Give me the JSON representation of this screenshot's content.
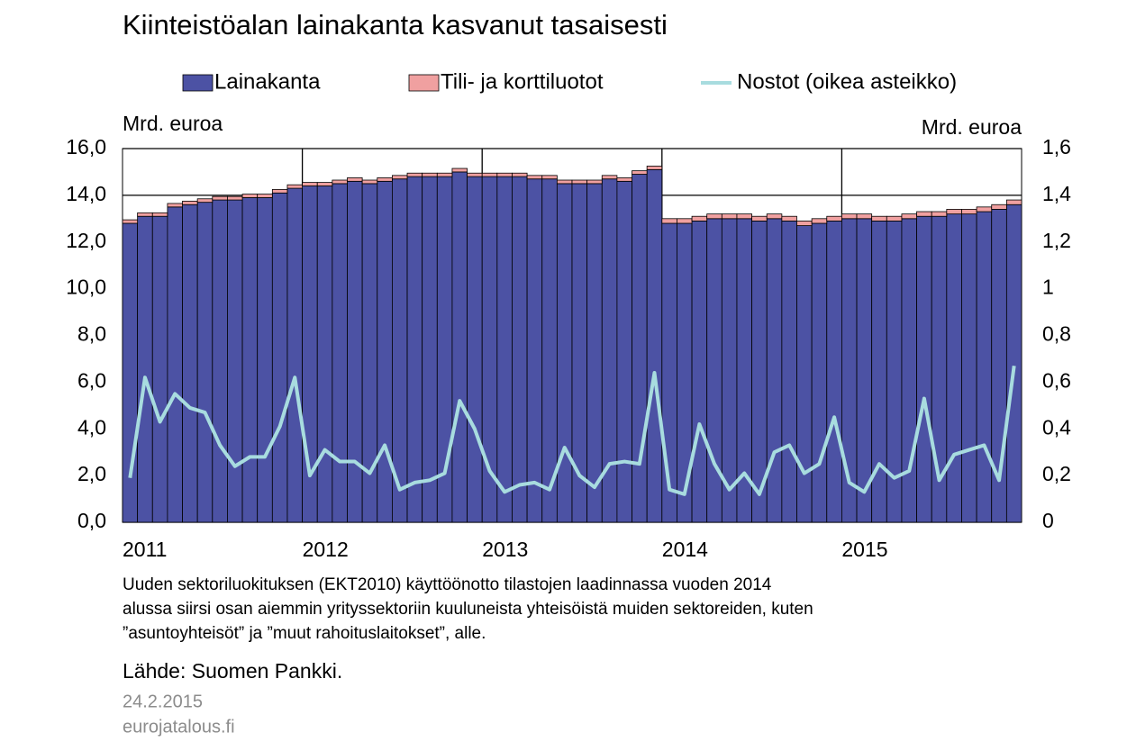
{
  "chart_data": {
    "type": "bar",
    "stacked": true,
    "title": "Kiinteistöalan lainakanta kasvanut tasaisesti",
    "y_label": "Mrd. euroa",
    "y2_label": "Mrd. euroa",
    "categories": [
      "2011",
      null,
      null,
      null,
      null,
      null,
      null,
      null,
      null,
      null,
      null,
      null,
      "2012",
      null,
      null,
      null,
      null,
      null,
      null,
      null,
      null,
      null,
      null,
      null,
      "2013",
      null,
      null,
      null,
      null,
      null,
      null,
      null,
      null,
      null,
      null,
      null,
      "2014",
      null,
      null,
      null,
      null,
      null,
      null,
      null,
      null,
      null,
      null,
      null,
      "2015",
      null,
      null,
      null,
      null,
      null,
      null,
      null,
      null,
      null,
      null,
      null
    ],
    "series": [
      {
        "name": "Lainakanta",
        "type": "bar",
        "color": "#4c52a4",
        "values": [
          12.8,
          13.1,
          13.1,
          13.5,
          13.6,
          13.7,
          13.8,
          13.8,
          13.9,
          13.9,
          14.1,
          14.3,
          14.4,
          14.4,
          14.5,
          14.6,
          14.5,
          14.6,
          14.7,
          14.8,
          14.8,
          14.8,
          15.0,
          14.8,
          14.8,
          14.8,
          14.8,
          14.7,
          14.7,
          14.5,
          14.5,
          14.5,
          14.7,
          14.6,
          14.9,
          15.1,
          12.8,
          12.8,
          12.9,
          13.0,
          13.0,
          13.0,
          12.9,
          13.0,
          12.9,
          12.7,
          12.8,
          12.9,
          13.0,
          13.0,
          12.9,
          12.9,
          13.0,
          13.1,
          13.1,
          13.2,
          13.2,
          13.3,
          13.4,
          13.6
        ]
      },
      {
        "name": "Tili- ja korttiluotot",
        "type": "bar",
        "color": "#f0a0a0",
        "values": [
          0.15,
          0.15,
          0.15,
          0.15,
          0.15,
          0.15,
          0.15,
          0.15,
          0.15,
          0.15,
          0.15,
          0.15,
          0.15,
          0.15,
          0.15,
          0.15,
          0.15,
          0.15,
          0.15,
          0.15,
          0.15,
          0.15,
          0.15,
          0.15,
          0.15,
          0.15,
          0.15,
          0.15,
          0.15,
          0.15,
          0.15,
          0.15,
          0.15,
          0.15,
          0.15,
          0.15,
          0.2,
          0.2,
          0.2,
          0.2,
          0.2,
          0.2,
          0.2,
          0.2,
          0.2,
          0.2,
          0.2,
          0.2,
          0.2,
          0.2,
          0.2,
          0.2,
          0.2,
          0.2,
          0.2,
          0.2,
          0.2,
          0.2,
          0.2,
          0.2
        ]
      },
      {
        "name": "Nostot (oikea asteikko)",
        "type": "line",
        "axis": "y2",
        "color": "#a8dcdf",
        "values": [
          0.19,
          0.62,
          0.43,
          0.55,
          0.49,
          0.47,
          0.33,
          0.24,
          0.28,
          0.28,
          0.41,
          0.62,
          0.2,
          0.31,
          0.26,
          0.26,
          0.21,
          0.33,
          0.14,
          0.17,
          0.18,
          0.21,
          0.52,
          0.4,
          0.22,
          0.13,
          0.16,
          0.17,
          0.14,
          0.32,
          0.2,
          0.15,
          0.25,
          0.26,
          0.25,
          0.64,
          0.14,
          0.12,
          0.42,
          0.25,
          0.14,
          0.21,
          0.12,
          0.3,
          0.33,
          0.21,
          0.25,
          0.45,
          0.17,
          0.13,
          0.25,
          0.19,
          0.22,
          0.53,
          0.18,
          0.29,
          0.31,
          0.33,
          0.18,
          0.67
        ]
      }
    ],
    "ylim": [
      0,
      16
    ],
    "yticks": [
      {
        "value": 0,
        "label": "0,0"
      },
      {
        "value": 2,
        "label": "2,0"
      },
      {
        "value": 4,
        "label": "4,0"
      },
      {
        "value": 6,
        "label": "6,0"
      },
      {
        "value": 8,
        "label": "8,0"
      },
      {
        "value": 10,
        "label": "10,0"
      },
      {
        "value": 12,
        "label": "12,0"
      },
      {
        "value": 14,
        "label": "14,0"
      },
      {
        "value": 16,
        "label": "16,0"
      }
    ],
    "y2lim": [
      0,
      1.6
    ],
    "y2ticks": [
      0,
      {
        "value": 0.2,
        "label": "0,2"
      },
      {
        "value": 0.4,
        "label": "0,4"
      },
      {
        "value": 0.6,
        "label": "0,6"
      },
      {
        "value": 0.8,
        "label": "0,8"
      },
      1,
      {
        "value": 1.2,
        "label": "1,2"
      },
      {
        "value": 1.4,
        "label": "1,4"
      },
      {
        "value": 1.6,
        "label": "1,6"
      }
    ],
    "grid": true,
    "legend": "top",
    "note_lines": [
      "Uuden sektoriluokituksen (EKT2010) käyttöönotto tilastojen laadinnassa vuoden 2014",
      "alussa siirsi osan aiemmin yrityssektoriin kuuluneista yhteisöistä muiden sektoreiden, kuten",
      "”asuntoyhteisöt” ja ”muut rahoituslaitokset”, alle."
    ],
    "source": "Lähde: Suomen Pankki.",
    "date": "24.2.2015",
    "site": "eurojatalous.fi"
  }
}
